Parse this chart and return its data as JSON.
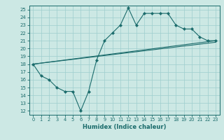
{
  "xlabel": "Humidex (Indice chaleur)",
  "xlim": [
    -0.5,
    23.5
  ],
  "ylim": [
    11.5,
    25.5
  ],
  "xticks": [
    0,
    1,
    2,
    3,
    4,
    5,
    6,
    7,
    8,
    9,
    10,
    11,
    12,
    13,
    14,
    15,
    16,
    17,
    18,
    19,
    20,
    21,
    22,
    23
  ],
  "yticks": [
    12,
    13,
    14,
    15,
    16,
    17,
    18,
    19,
    20,
    21,
    22,
    23,
    24,
    25
  ],
  "background_color": "#cce8e4",
  "grid_color": "#9ecece",
  "line_color": "#1a6b6b",
  "line1_x": [
    0,
    1,
    2,
    3,
    4,
    5,
    6,
    7,
    8,
    9,
    10,
    11,
    12,
    13,
    14,
    15,
    16,
    17,
    18,
    19,
    20,
    21,
    22,
    23
  ],
  "line1_y": [
    18,
    16.5,
    16,
    15,
    14.5,
    14.5,
    12,
    14.5,
    18.5,
    21,
    22,
    23,
    25.2,
    23,
    24.5,
    24.5,
    24.5,
    24.5,
    23,
    22.5,
    22.5,
    21.5,
    21,
    21
  ],
  "line2_x": [
    0,
    23
  ],
  "line2_y": [
    18,
    21
  ],
  "line3_x": [
    0,
    23
  ],
  "line3_y": [
    18,
    20.8
  ]
}
